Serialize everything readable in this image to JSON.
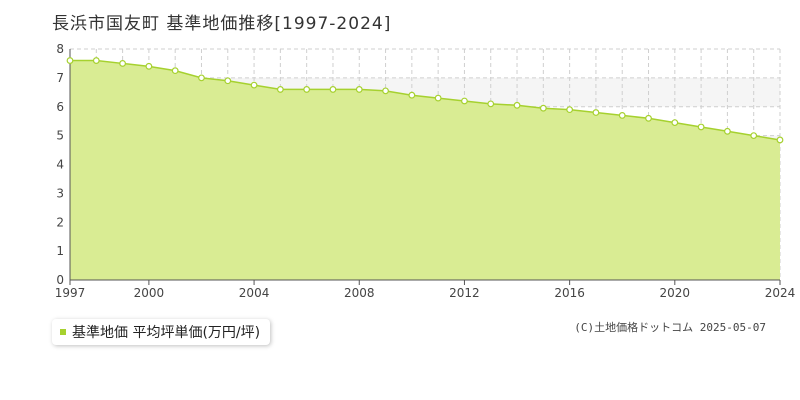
{
  "page": {
    "title": "長浜市国友町 基準地価推移[1997-2024]",
    "legend_label": "基準地価 平均坪単価(万円/坪)",
    "credit": "(C)土地価格ドットコム 2025-05-07"
  },
  "colors": {
    "fill": "#d9ec93",
    "line": "#a6d12f",
    "marker_fill": "#ffffff",
    "grid": "#cfcfcf",
    "band": "#f5f5f5"
  },
  "chart_data": {
    "type": "area",
    "x": [
      1997,
      1998,
      1999,
      2000,
      2001,
      2002,
      2003,
      2004,
      2005,
      2006,
      2007,
      2008,
      2009,
      2010,
      2011,
      2012,
      2013,
      2014,
      2015,
      2016,
      2017,
      2018,
      2019,
      2020,
      2021,
      2022,
      2023,
      2024
    ],
    "series": [
      {
        "name": "基準地価 平均坪単価(万円/坪)",
        "values": [
          7.6,
          7.6,
          7.5,
          7.4,
          7.25,
          7.0,
          6.9,
          6.75,
          6.6,
          6.6,
          6.6,
          6.6,
          6.55,
          6.4,
          6.3,
          6.2,
          6.1,
          6.05,
          5.95,
          5.9,
          5.8,
          5.7,
          5.6,
          5.45,
          5.3,
          5.15,
          5.0,
          4.85
        ]
      }
    ],
    "xlim": [
      1997,
      2024
    ],
    "ylim": [
      0,
      8
    ],
    "xticks": [
      1997,
      2000,
      2004,
      2008,
      2012,
      2016,
      2020,
      2024
    ],
    "yticks": [
      0,
      1,
      2,
      3,
      4,
      5,
      6,
      7,
      8
    ],
    "grid": true,
    "legend_position": "bottom-left"
  }
}
